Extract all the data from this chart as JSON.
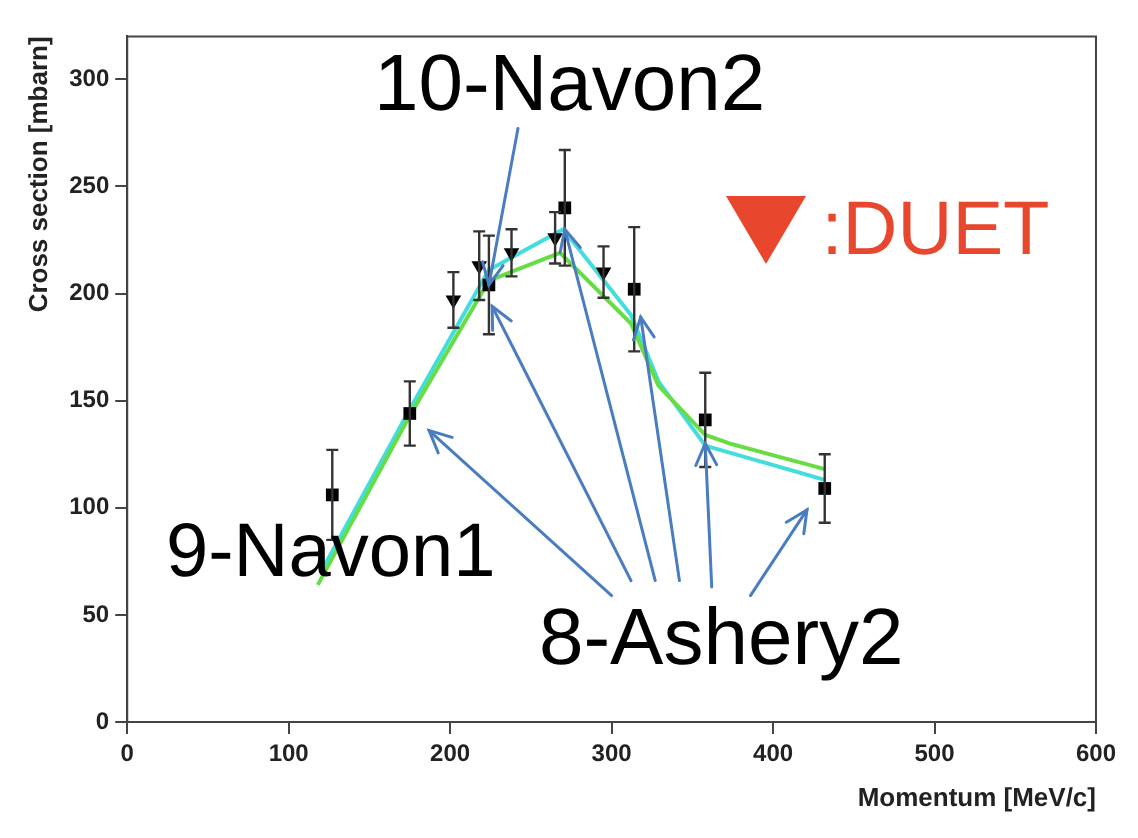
{
  "chart_data": {
    "type": "scatter",
    "xlabel": "Momentum [MeV/c]",
    "ylabel": "Cross section [mbarn]",
    "xlim": [
      0,
      600
    ],
    "xticks": [
      0,
      100,
      200,
      300,
      400,
      500,
      600
    ],
    "ylim": [
      0,
      320
    ],
    "yticks": [
      0,
      50,
      100,
      150,
      200,
      250,
      300
    ],
    "annotations": [
      {
        "text": "10-Navon2",
        "x": 224,
        "y": 204
      },
      "9-Navon1",
      {
        "text": "8-Ashery2",
        "x": 271,
        "y": 230
      },
      ":DUET"
    ],
    "series": [
      {
        "type": "line",
        "color": "#66dd44",
        "marker": "none",
        "line_style": "solid",
        "x": [
          118,
          175,
          224,
          268,
          312,
          329,
          358,
          373,
          432
        ],
        "values": [
          64,
          143,
          206,
          219,
          186,
          157,
          134,
          130,
          118
        ]
      },
      {
        "type": "line",
        "color": "#44dddd",
        "marker": "none",
        "line_style": "solid",
        "x": [
          120,
          175,
          224,
          270,
          312,
          329,
          358,
          432
        ],
        "values": [
          70,
          146,
          211,
          230,
          190,
          159,
          129,
          113
        ]
      },
      {
        "type": "scatter",
        "color": "#000000",
        "marker": "square",
        "x": [
          127,
          175,
          224,
          271,
          314,
          358,
          432
        ],
        "values": [
          106,
          144,
          204,
          240,
          202,
          141,
          109
        ],
        "errors": [
          21,
          15,
          23,
          27,
          29,
          22,
          16
        ]
      },
      {
        "type": "scatter",
        "color": "#000000",
        "marker": "triangle",
        "x": [
          202,
          218,
          238,
          265,
          295
        ],
        "values": [
          197,
          213,
          219,
          226,
          210
        ],
        "errors": [
          13,
          16,
          11,
          12,
          12
        ]
      }
    ]
  }
}
